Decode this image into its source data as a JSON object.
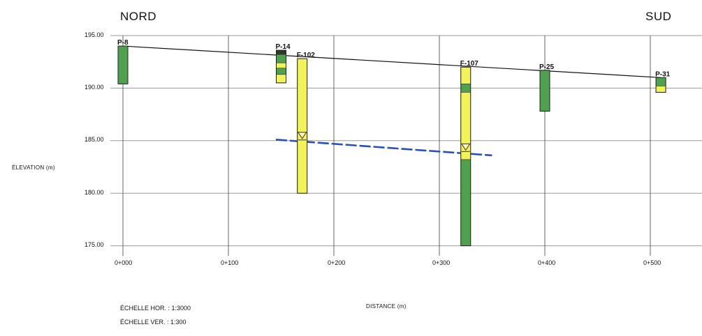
{
  "header": {
    "left": "NORD",
    "right": "SUD"
  },
  "y_axis": {
    "title": "ÉLEVATION (m)",
    "ticks": [
      "195.00",
      "190.00",
      "185.00",
      "180.00",
      "175.00"
    ]
  },
  "x_axis": {
    "title": "DISTANCE (m)",
    "ticks": [
      "0+000",
      "0+100",
      "0+200",
      "0+300",
      "0+400",
      "0+500"
    ]
  },
  "scales": {
    "horizontal": "ÉCHELLE HOR. : 1:3000",
    "vertical": "ÉCHELLE VER. : 1:300"
  },
  "colors": {
    "green": "#4fa04f",
    "yellow": "#f2f25a",
    "water": "#2a4fb8",
    "grid": "#9a9a9a"
  },
  "boreholes": [
    {
      "name": "P-8",
      "distance": 0,
      "top": 194.0,
      "layers": [
        {
          "to": 190.4,
          "material": "green"
        }
      ]
    },
    {
      "name": "P-14",
      "distance": 150,
      "top": 193.6,
      "layers": [
        {
          "to": 193.2,
          "material": "dark"
        },
        {
          "to": 192.4,
          "material": "green"
        },
        {
          "to": 191.9,
          "material": "yellow"
        },
        {
          "to": 191.3,
          "material": "green"
        },
        {
          "to": 190.5,
          "material": "yellow"
        }
      ]
    },
    {
      "name": "F-102",
      "distance": 170,
      "top": 192.8,
      "layers": [
        {
          "to": 180.0,
          "material": "yellow"
        }
      ],
      "water_level": 185.4
    },
    {
      "name": "F-107",
      "distance": 325,
      "top": 192.0,
      "layers": [
        {
          "to": 190.4,
          "material": "yellow"
        },
        {
          "to": 189.6,
          "material": "green"
        },
        {
          "to": 183.2,
          "material": "yellow"
        },
        {
          "to": 175.0,
          "material": "green"
        }
      ],
      "water_level": 184.3
    },
    {
      "name": "P-25",
      "distance": 400,
      "top": 191.7,
      "layers": [
        {
          "to": 187.8,
          "material": "green"
        }
      ]
    },
    {
      "name": "P-31",
      "distance": 510,
      "top": 191.0,
      "layers": [
        {
          "to": 190.2,
          "material": "green"
        },
        {
          "to": 189.6,
          "material": "yellow"
        }
      ]
    }
  ],
  "ground_line": [
    {
      "distance": 0,
      "elevation": 194.0
    },
    {
      "distance": 510,
      "elevation": 191.0
    }
  ],
  "water_table": [
    {
      "distance": 145,
      "elevation": 185.1
    },
    {
      "distance": 350,
      "elevation": 183.6
    }
  ]
}
